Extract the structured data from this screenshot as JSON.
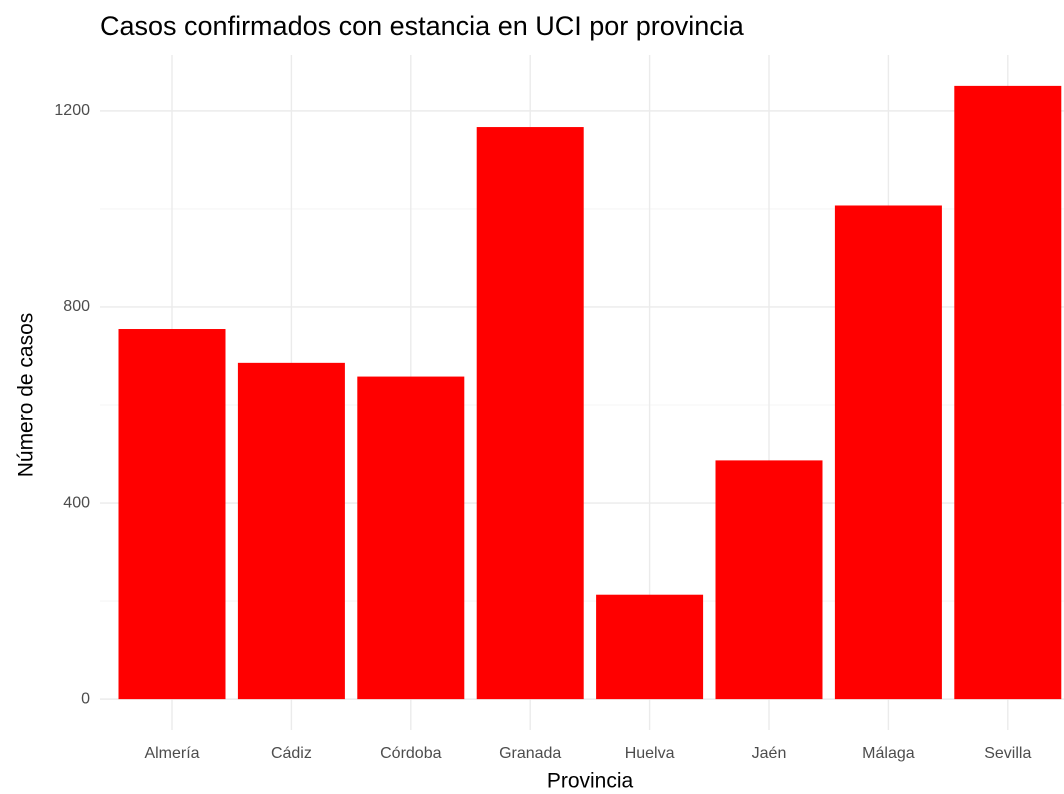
{
  "chart_data": {
    "type": "bar",
    "title": "Casos confirmados con estancia en UCI por provincia",
    "x_label": "Provincia",
    "y_label": "Número de casos",
    "categories": [
      "Almería",
      "Cádiz",
      "Córdoba",
      "Granada",
      "Huelva",
      "Jaén",
      "Málaga",
      "Sevilla"
    ],
    "values": [
      755,
      686,
      658,
      1167,
      213,
      487,
      1007,
      1251
    ],
    "color": "#ff0000",
    "ylim": [
      -63,
      1314
    ],
    "yticks": [
      0,
      400,
      800,
      1200
    ],
    "minor_yticks": [
      200,
      600,
      1000
    ],
    "grid": true
  }
}
